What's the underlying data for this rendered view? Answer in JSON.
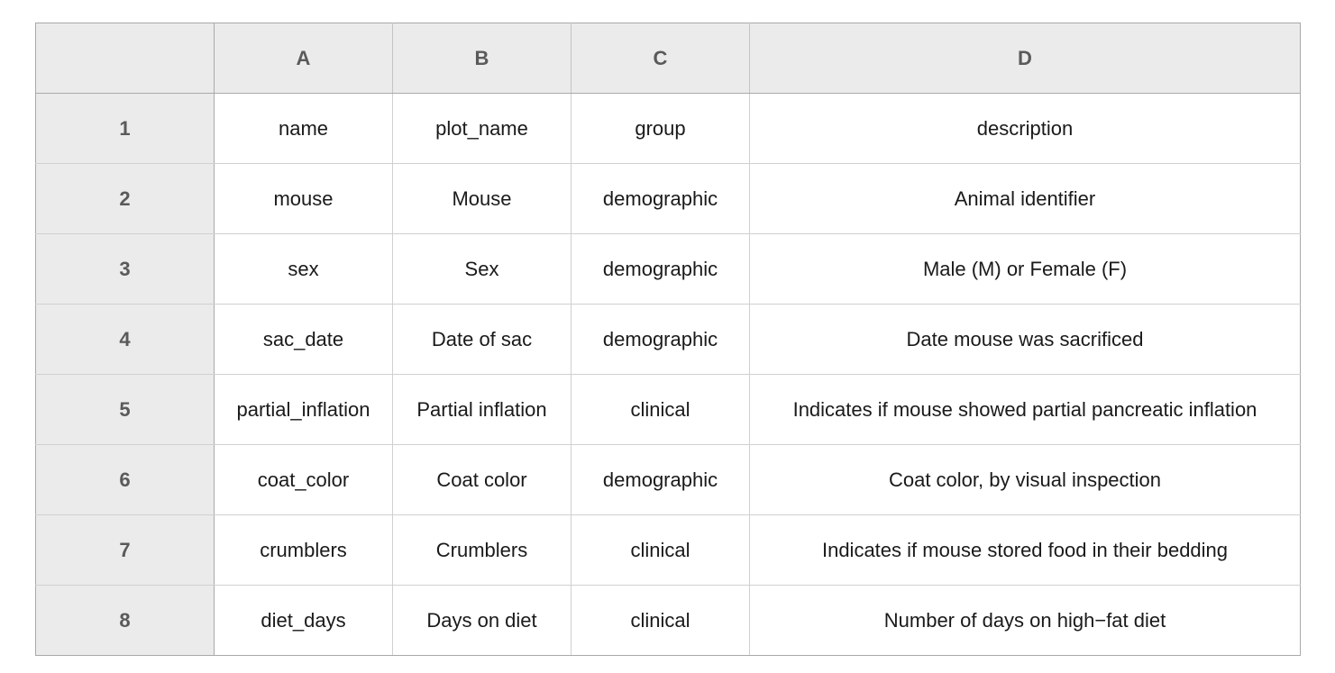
{
  "column_headers": [
    "A",
    "B",
    "C",
    "D"
  ],
  "rows": [
    {
      "row": "1",
      "cells": [
        "name",
        "plot_name",
        "group",
        "description"
      ]
    },
    {
      "row": "2",
      "cells": [
        "mouse",
        "Mouse",
        "demographic",
        "Animal identifier"
      ]
    },
    {
      "row": "3",
      "cells": [
        "sex",
        "Sex",
        "demographic",
        "Male (M) or Female (F)"
      ]
    },
    {
      "row": "4",
      "cells": [
        "sac_date",
        "Date of sac",
        "demographic",
        "Date mouse was sacrificed"
      ]
    },
    {
      "row": "5",
      "cells": [
        "partial_inflation",
        "Partial inflation",
        "clinical",
        "Indicates if mouse showed partial pancreatic inflation"
      ]
    },
    {
      "row": "6",
      "cells": [
        "coat_color",
        "Coat color",
        "demographic",
        "Coat color, by visual inspection"
      ]
    },
    {
      "row": "7",
      "cells": [
        "crumblers",
        "Crumblers",
        "clinical",
        "Indicates if mouse stored food in their bedding"
      ]
    },
    {
      "row": "8",
      "cells": [
        "diet_days",
        "Days on diet",
        "clinical",
        "Number of days on high−fat diet"
      ]
    }
  ]
}
